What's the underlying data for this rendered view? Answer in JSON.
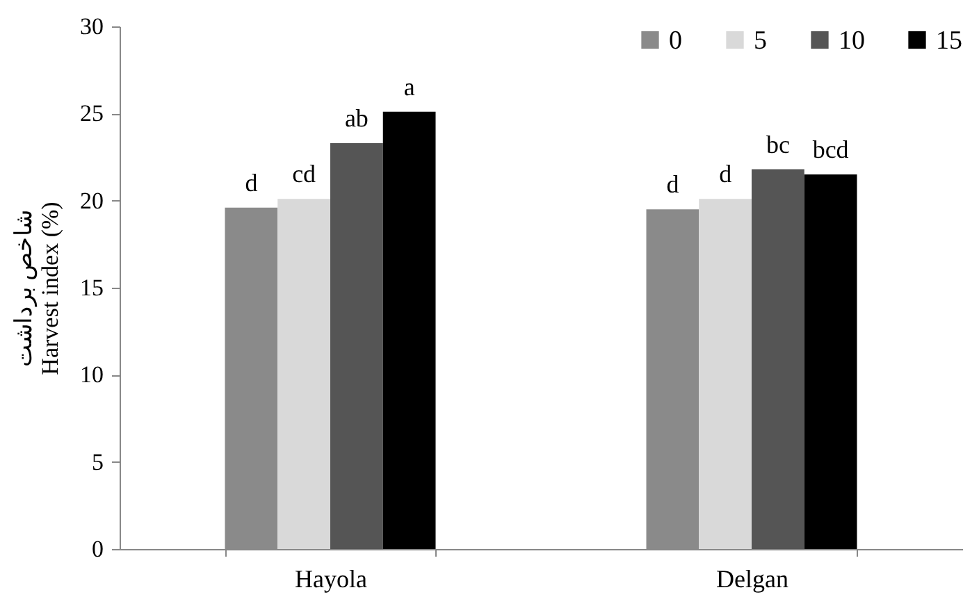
{
  "chart_data": {
    "type": "bar",
    "ylabel": "شاخص برداشت\nHarvest index (%)",
    "categories": [
      "Hayola",
      "Delgan"
    ],
    "series": [
      {
        "name": "0",
        "color": "#8a8a8a",
        "values": [
          19.6,
          19.5
        ],
        "value_labels": [
          "d",
          "d"
        ]
      },
      {
        "name": "5",
        "color": "#d9d9d9",
        "values": [
          20.1,
          20.1
        ],
        "value_labels": [
          "cd",
          "d"
        ]
      },
      {
        "name": "10",
        "color": "#555555",
        "values": [
          23.3,
          21.8
        ],
        "value_labels": [
          "ab",
          "bc"
        ]
      },
      {
        "name": "15",
        "color": "#000000",
        "values": [
          25.1,
          21.5
        ],
        "value_labels": [
          "a",
          "bcd"
        ]
      }
    ],
    "ylim": [
      0,
      30
    ],
    "yticks": [
      0,
      5,
      10,
      15,
      20,
      25,
      30
    ],
    "grid": false,
    "legend": "top right"
  }
}
